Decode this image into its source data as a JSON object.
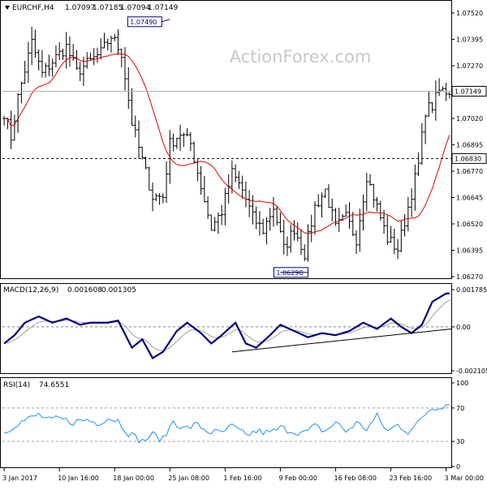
{
  "watermark": "ActionForex.com",
  "chart_data": [
    {
      "panel": "price",
      "type": "bar",
      "header": {
        "symbol": "EURCHF,H4",
        "ohlc": [
          "1.07097",
          "1.07185",
          "1.07094",
          "1.07149"
        ]
      },
      "y_ticks": [
        "1.07520",
        "1.07395",
        "1.07270",
        "1.07020",
        "1.06895",
        "1.06770",
        "1.06645",
        "1.06520",
        "1.06395",
        "1.06270"
      ],
      "ylim": [
        1.0627,
        1.0752
      ],
      "last_price_label": "1.07149",
      "horizontal_line_label": "1.06830",
      "annotations": [
        {
          "text": "1.07490",
          "at_category": "25 Jan 08:00"
        },
        {
          "text": "1.06290",
          "at_category": "9 Feb 00:00"
        }
      ],
      "moving_average": {
        "color": "#e00000"
      },
      "close_path_key": [
        [
          0,
          1.0705
        ],
        [
          2,
          1.0693
        ],
        [
          4,
          1.0712
        ],
        [
          8,
          1.0738
        ],
        [
          11,
          1.0723
        ],
        [
          15,
          1.0731
        ],
        [
          18,
          1.0736
        ],
        [
          21,
          1.0724
        ],
        [
          24,
          1.0728
        ],
        [
          28,
          1.0733
        ],
        [
          31,
          1.0741
        ],
        [
          34,
          1.0733
        ],
        [
          37,
          1.07
        ],
        [
          40,
          1.0682
        ],
        [
          43,
          1.0665
        ],
        [
          46,
          1.0665
        ],
        [
          48,
          1.069
        ],
        [
          51,
          1.0695
        ],
        [
          54,
          1.069
        ],
        [
          57,
          1.067
        ],
        [
          60,
          1.065
        ],
        [
          63,
          1.0658
        ],
        [
          66,
          1.0676
        ],
        [
          69,
          1.0668
        ],
        [
          72,
          1.0655
        ],
        [
          75,
          1.0649
        ],
        [
          78,
          1.066
        ],
        [
          81,
          1.064
        ],
        [
          84,
          1.065
        ],
        [
          87,
          1.0638
        ],
        [
          90,
          1.066
        ],
        [
          93,
          1.0668
        ],
        [
          96,
          1.065
        ],
        [
          99,
          1.0655
        ],
        [
          102,
          1.0645
        ],
        [
          105,
          1.0675
        ],
        [
          108,
          1.066
        ],
        [
          111,
          1.0645
        ],
        [
          114,
          1.064
        ],
        [
          117,
          1.066
        ],
        [
          120,
          1.068
        ],
        [
          122,
          1.0706
        ],
        [
          124,
          1.0708
        ],
        [
          126,
          1.0715
        ]
      ]
    },
    {
      "panel": "macd",
      "type": "line",
      "header": {
        "name": "MACD(12,26,9)",
        "main": "0.001608",
        "signal": "0.001305"
      },
      "y_ticks": [
        "0.001785",
        "0.00",
        "-0.002105"
      ],
      "ylim": [
        -0.002105,
        0.001785
      ],
      "series": [
        {
          "color": "#000080"
        },
        {
          "color": "#a0a0a0"
        }
      ],
      "main_key": [
        [
          0,
          -0.0008
        ],
        [
          3,
          -0.0004
        ],
        [
          6,
          0.0002
        ],
        [
          10,
          0.0005
        ],
        [
          14,
          0.0002
        ],
        [
          18,
          0.0004
        ],
        [
          22,
          0.0001
        ],
        [
          25,
          0.0002
        ],
        [
          30,
          0.0002
        ],
        [
          33,
          0.0003
        ],
        [
          37,
          -0.001
        ],
        [
          40,
          -0.0006
        ],
        [
          43,
          -0.0015
        ],
        [
          46,
          -0.0012
        ],
        [
          50,
          -0.0002
        ],
        [
          53,
          0.0002
        ],
        [
          57,
          -0.0003
        ],
        [
          60,
          -0.0008
        ],
        [
          63,
          -0.0004
        ],
        [
          67,
          0.0002
        ],
        [
          70,
          -0.0008
        ],
        [
          73,
          -0.001
        ],
        [
          77,
          -0.0004
        ],
        [
          80,
          0.0001
        ],
        [
          84,
          -0.0002
        ],
        [
          88,
          -0.0005
        ],
        [
          92,
          -0.0003
        ],
        [
          96,
          -0.0004
        ],
        [
          100,
          -0.0002
        ],
        [
          104,
          0.0002
        ],
        [
          108,
          -0.0001
        ],
        [
          112,
          0.0004
        ],
        [
          115,
          0.0
        ],
        [
          118,
          -0.0003
        ],
        [
          121,
          0.0001
        ],
        [
          124,
          0.0012
        ],
        [
          128,
          0.0016
        ]
      ],
      "trendline": {
        "from": [
          66,
          -0.0012
        ],
        "to": [
          134,
          -0.0001
        ]
      }
    },
    {
      "panel": "rsi",
      "type": "line",
      "header": {
        "name": "RSI(14)",
        "value": "74.6551"
      },
      "y_ticks": [
        "100",
        "70",
        "30",
        "0"
      ],
      "ylim": [
        0,
        100
      ],
      "levels": [
        70,
        30
      ],
      "series": [
        {
          "color": "#1e90ff"
        }
      ],
      "key": [
        [
          0,
          40
        ],
        [
          3,
          50
        ],
        [
          6,
          55
        ],
        [
          10,
          62
        ],
        [
          13,
          55
        ],
        [
          16,
          57
        ],
        [
          20,
          53
        ],
        [
          24,
          56
        ],
        [
          27,
          52
        ],
        [
          30,
          58
        ],
        [
          33,
          55
        ],
        [
          36,
          40
        ],
        [
          40,
          30
        ],
        [
          43,
          38
        ],
        [
          46,
          32
        ],
        [
          49,
          55
        ],
        [
          52,
          45
        ],
        [
          56,
          50
        ],
        [
          59,
          42
        ],
        [
          63,
          40
        ],
        [
          66,
          48
        ],
        [
          70,
          37
        ],
        [
          73,
          42
        ],
        [
          77,
          40
        ],
        [
          80,
          46
        ],
        [
          84,
          42
        ],
        [
          87,
          40
        ],
        [
          90,
          48
        ],
        [
          93,
          42
        ],
        [
          96,
          53
        ],
        [
          99,
          42
        ],
        [
          102,
          52
        ],
        [
          105,
          45
        ],
        [
          108,
          60
        ],
        [
          111,
          42
        ],
        [
          114,
          50
        ],
        [
          117,
          42
        ],
        [
          120,
          52
        ],
        [
          123,
          68
        ],
        [
          126,
          72
        ],
        [
          129,
          75
        ]
      ]
    }
  ],
  "x_axis": {
    "labels": [
      "3 Jan 2017",
      "10 Jan 16:00",
      "18 Jan 00:00",
      "25 Jan 08:00",
      "1 Feb 16:00",
      "9 Feb 00:00",
      "16 Feb 08:00",
      "23 Feb 16:00",
      "3 Mar 00:00"
    ],
    "label_index": [
      0,
      16,
      32,
      48,
      64,
      80,
      96,
      112,
      128
    ],
    "bar_count": 130
  }
}
